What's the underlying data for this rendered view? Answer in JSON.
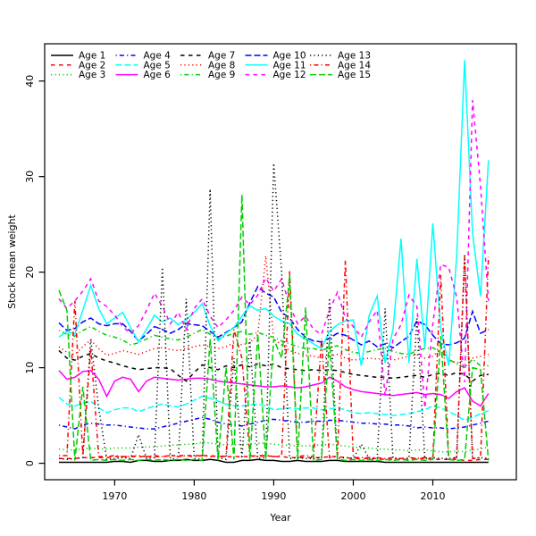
{
  "figure": {
    "background": "#ffffff",
    "xlabel": "Year",
    "ylabel": "Stock mean weight"
  },
  "chart_data": {
    "type": "line",
    "title": "",
    "xlabel": "Year",
    "ylabel": "Stock mean weight",
    "grid": false,
    "legend_position": "top-left-inside",
    "legend_columns": 5,
    "xlim": [
      1961.2,
      2020.5
    ],
    "ylim": [
      -1.72,
      43.9
    ],
    "x_ticks": [
      1970,
      1980,
      1990,
      2000,
      2010
    ],
    "y_ticks": [
      0,
      10,
      20,
      30,
      40
    ],
    "x": [
      1963,
      1964,
      1965,
      1966,
      1967,
      1968,
      1969,
      1970,
      1971,
      1972,
      1973,
      1974,
      1975,
      1976,
      1977,
      1978,
      1979,
      1980,
      1981,
      1982,
      1983,
      1984,
      1985,
      1986,
      1987,
      1988,
      1989,
      1990,
      1991,
      1992,
      1993,
      1994,
      1995,
      1996,
      1997,
      1998,
      1999,
      2000,
      2001,
      2002,
      2003,
      2004,
      2005,
      2006,
      2007,
      2008,
      2009,
      2010,
      2011,
      2012,
      2013,
      2014,
      2015,
      2016,
      2017
    ],
    "series": [
      {
        "name": "Age 1",
        "color": "#000000",
        "dash": "solid",
        "values": [
          0.1,
          0.1,
          0.1,
          0.1,
          0.1,
          0.1,
          0.1,
          0.2,
          0.2,
          0.1,
          0.3,
          0.3,
          0.2,
          0.2,
          0.3,
          0.3,
          0.4,
          0.3,
          0.3,
          0.4,
          0.3,
          0.1,
          0.1,
          0.3,
          0.3,
          0.4,
          0.3,
          0.3,
          0.2,
          0.2,
          0.3,
          0.2,
          0.2,
          0.2,
          0.3,
          0.3,
          0.2,
          0.2,
          0.2,
          0.2,
          0.2,
          0.1,
          0.1,
          0.1,
          0.1,
          0.1,
          0.1,
          0.1,
          0.1,
          0.1,
          0.1,
          0.1,
          0.1,
          0.1,
          0.1
        ]
      },
      {
        "name": "Age 2",
        "color": "#FF0000",
        "dash": "dashed",
        "values": [
          0.5,
          0.5,
          0.5,
          0.6,
          0.6,
          0.6,
          0.6,
          0.7,
          0.7,
          0.7,
          0.7,
          0.7,
          0.7,
          0.7,
          0.8,
          0.8,
          0.8,
          0.8,
          0.8,
          0.8,
          0.7,
          0.7,
          0.7,
          0.7,
          0.7,
          0.8,
          0.8,
          0.7,
          0.7,
          0.6,
          0.6,
          0.6,
          0.6,
          0.6,
          0.7,
          0.7,
          0.6,
          0.5,
          0.5,
          0.5,
          0.5,
          0.4,
          0.4,
          0.4,
          0.4,
          0.5,
          0.5,
          0.4,
          0.4,
          0.4,
          0.4,
          0.3,
          0.3,
          0.4,
          0.4
        ]
      },
      {
        "name": "Age 3",
        "color": "#00CD00",
        "dash": "dotted",
        "values": [
          1.5,
          1.4,
          1.4,
          1.5,
          1.6,
          1.5,
          1.5,
          1.6,
          1.6,
          1.6,
          1.7,
          1.7,
          1.7,
          1.8,
          1.9,
          1.9,
          2.0,
          2.0,
          2.2,
          2.1,
          2.0,
          1.9,
          1.9,
          2.0,
          2.0,
          2.1,
          2.1,
          2.0,
          1.9,
          1.9,
          1.8,
          1.8,
          1.9,
          1.9,
          2.0,
          1.9,
          1.8,
          1.7,
          1.6,
          1.6,
          1.5,
          1.5,
          1.4,
          1.4,
          1.3,
          1.4,
          1.4,
          1.3,
          1.2,
          1.2,
          1.3,
          1.2,
          1.4,
          1.5,
          1.7
        ]
      },
      {
        "name": "Age 4",
        "color": "#0000FF",
        "dash": "dotdash",
        "values": [
          4.0,
          3.8,
          3.6,
          4.0,
          4.2,
          4.1,
          4.0,
          4.0,
          3.9,
          3.8,
          3.7,
          3.6,
          3.6,
          3.8,
          4.0,
          4.2,
          4.4,
          4.6,
          4.8,
          4.6,
          4.3,
          4.1,
          4.0,
          3.9,
          4.1,
          4.3,
          4.5,
          4.6,
          4.5,
          4.4,
          4.3,
          4.3,
          4.4,
          4.4,
          4.5,
          4.5,
          4.4,
          4.3,
          4.2,
          4.2,
          4.1,
          4.1,
          4.0,
          4.0,
          3.9,
          3.7,
          3.8,
          3.7,
          3.7,
          3.6,
          3.7,
          3.8,
          4.0,
          4.2,
          4.4
        ]
      },
      {
        "name": "Age 5",
        "color": "#00FFFF",
        "dash": "longdash",
        "values": [
          6.9,
          6.2,
          6.0,
          6.3,
          6.5,
          5.8,
          5.3,
          5.6,
          5.8,
          5.8,
          5.4,
          5.7,
          6.0,
          6.2,
          6.0,
          5.9,
          6.2,
          6.6,
          7.0,
          6.8,
          6.5,
          6.2,
          6.0,
          6.0,
          6.1,
          6.2,
          6.0,
          5.6,
          5.7,
          5.8,
          5.7,
          5.8,
          5.8,
          5.6,
          5.7,
          5.8,
          5.6,
          5.3,
          5.2,
          5.3,
          5.2,
          5.1,
          5.0,
          5.1,
          5.2,
          5.4,
          5.6,
          6.0,
          5.8,
          5.4,
          5.0,
          4.5,
          4.8,
          5.2,
          5.5
        ]
      },
      {
        "name": "Age 6",
        "color": "#FF00FF",
        "dash": "solid",
        "values": [
          9.7,
          8.8,
          9.0,
          9.6,
          9.7,
          8.8,
          7.0,
          8.6,
          9.0,
          8.8,
          7.5,
          8.6,
          9.0,
          8.9,
          8.8,
          8.7,
          8.8,
          8.9,
          8.9,
          8.8,
          8.6,
          8.5,
          8.4,
          8.3,
          8.2,
          8.1,
          8.0,
          8.0,
          8.1,
          8.0,
          7.9,
          8.0,
          8.2,
          8.4,
          9.0,
          8.6,
          8.0,
          7.7,
          7.5,
          7.4,
          7.3,
          7.2,
          7.1,
          7.2,
          7.3,
          7.4,
          7.2,
          7.3,
          7.2,
          6.8,
          7.5,
          7.9,
          6.5,
          6.0,
          7.3
        ]
      },
      {
        "name": "Age 7",
        "color": "#000000",
        "dash": "dashed",
        "values": [
          11.8,
          11.0,
          10.8,
          11.2,
          11.5,
          11.0,
          10.7,
          10.5,
          10.2,
          10.0,
          9.8,
          9.9,
          10.0,
          10.0,
          9.9,
          9.2,
          8.6,
          9.5,
          10.3,
          10.0,
          9.8,
          10.2,
          10.0,
          10.3,
          10.1,
          10.4,
          10.2,
          10.4,
          10.0,
          9.9,
          9.8,
          9.7,
          9.8,
          9.7,
          9.8,
          9.7,
          9.5,
          9.3,
          9.2,
          9.1,
          9.0,
          9.0,
          8.9,
          9.0,
          9.1,
          9.2,
          9.0,
          9.3,
          9.4,
          9.2,
          9.5,
          9.3,
          8.6,
          9.2,
          9.3
        ]
      },
      {
        "name": "Age 8",
        "color": "#FF0000",
        "dash": "dotted",
        "values": [
          12.2,
          11.6,
          11.4,
          12.2,
          12.9,
          12.0,
          11.3,
          11.5,
          11.8,
          11.6,
          11.4,
          11.7,
          12.0,
          12.1,
          11.9,
          11.8,
          12.0,
          12.2,
          12.4,
          12.2,
          12.0,
          12.2,
          12.6,
          12.4,
          12.6,
          13.5,
          21.7,
          13.0,
          12.4,
          11.8,
          11.5,
          11.3,
          11.2,
          11.0,
          11.2,
          11.4,
          11.0,
          10.8,
          10.9,
          11.0,
          10.9,
          11.0,
          10.8,
          11.0,
          11.2,
          11.4,
          11.0,
          11.2,
          12.0,
          10.8,
          10.5,
          10.8,
          11.0,
          11.2,
          11.4
        ]
      },
      {
        "name": "Age 9",
        "color": "#00CD00",
        "dash": "dotdash",
        "values": [
          13.9,
          13.5,
          13.3,
          13.9,
          14.3,
          13.8,
          13.4,
          13.2,
          12.9,
          12.4,
          12.6,
          13.0,
          13.4,
          13.2,
          13.0,
          12.9,
          13.2,
          13.6,
          14.0,
          13.5,
          13.0,
          13.3,
          13.6,
          13.8,
          13.5,
          13.7,
          13.4,
          13.2,
          12.8,
          12.5,
          12.2,
          12.0,
          12.0,
          11.8,
          12.1,
          12.3,
          11.9,
          11.6,
          11.5,
          11.7,
          11.9,
          12.0,
          11.7,
          11.5,
          11.4,
          11.8,
          12.0,
          12.1,
          11.6,
          10.9,
          10.4,
          10.0,
          10.9,
          10.2,
          10.2
        ]
      },
      {
        "name": "Age 10",
        "color": "#0000FF",
        "dash": "longdash",
        "values": [
          14.7,
          13.9,
          14.1,
          14.8,
          15.2,
          14.6,
          14.4,
          14.6,
          14.6,
          13.8,
          12.8,
          13.5,
          14.3,
          14.0,
          13.6,
          14.0,
          14.6,
          14.5,
          14.4,
          13.8,
          13.2,
          13.7,
          14.2,
          14.8,
          16.8,
          18.5,
          17.8,
          17.4,
          15.8,
          15.2,
          14.0,
          13.2,
          12.8,
          12.7,
          13.1,
          13.6,
          13.4,
          12.9,
          12.4,
          12.8,
          12.2,
          12.5,
          12.1,
          12.7,
          13.3,
          14.9,
          14.5,
          13.4,
          12.5,
          12.4,
          12.6,
          13.1,
          15.9,
          13.6,
          14.0
        ]
      },
      {
        "name": "Age 11",
        "color": "#00FFFF",
        "dash": "solid",
        "values": [
          13.2,
          13.8,
          13.5,
          16.0,
          18.6,
          16.2,
          14.6,
          15.2,
          15.8,
          14.2,
          12.7,
          14.0,
          15.5,
          14.8,
          15.2,
          14.5,
          15.0,
          15.8,
          16.7,
          14.4,
          12.8,
          13.6,
          14.2,
          15.4,
          16.5,
          16.0,
          16.2,
          15.4,
          14.9,
          14.6,
          13.5,
          13.0,
          12.5,
          12.0,
          13.8,
          14.5,
          14.9,
          15.0,
          10.2,
          15.5,
          17.5,
          10.5,
          14.0,
          23.5,
          10.5,
          21.4,
          12.0,
          25.1,
          14.0,
          10.2,
          21.6,
          42.2,
          24.0,
          17.5,
          31.7
        ]
      },
      {
        "name": "Age 12",
        "color": "#FF00FF",
        "dash": "dashed",
        "values": [
          17.2,
          16.2,
          17.0,
          18.0,
          19.3,
          17.0,
          16.4,
          15.5,
          14.3,
          13.6,
          14.4,
          16.0,
          17.8,
          16.4,
          14.6,
          15.8,
          14.0,
          16.2,
          17.2,
          15.4,
          14.2,
          15.0,
          16.0,
          17.4,
          16.6,
          17.6,
          19.4,
          18.0,
          19.3,
          16.5,
          14.6,
          15.4,
          14.0,
          13.5,
          16.0,
          17.9,
          15.2,
          14.3,
          13.2,
          14.8,
          16.0,
          7.1,
          13.0,
          14.5,
          17.6,
          16.4,
          5.8,
          14.6,
          20.8,
          20.5,
          17.4,
          8.5,
          38.0,
          29.0,
          17.0
        ]
      },
      {
        "name": "Age 13",
        "color": "#000000",
        "dash": "dotted",
        "values": [
          0.5,
          0.4,
          0.5,
          0.6,
          13.0,
          5.8,
          0.4,
          0.5,
          0.6,
          0.5,
          3.0,
          0.5,
          0.6,
          20.5,
          0.5,
          0.4,
          17.2,
          0.5,
          0.4,
          28.7,
          0.6,
          0.4,
          11.0,
          0.5,
          13.0,
          0.5,
          0.6,
          31.4,
          20.0,
          0.5,
          0.6,
          0.5,
          0.5,
          0.6,
          17.3,
          0.5,
          0.6,
          0.5,
          2.0,
          0.5,
          0.5,
          16.2,
          0.5,
          0.5,
          0.5,
          15.3,
          0.5,
          0.6,
          0.5,
          0.5,
          0.6,
          21.9,
          0.5,
          0.6,
          0.5
        ]
      },
      {
        "name": "Age 14",
        "color": "#FF0000",
        "dash": "dotdash",
        "values": [
          0.8,
          0.8,
          17.0,
          0.8,
          12.0,
          0.7,
          0.7,
          0.8,
          0.7,
          0.7,
          0.8,
          0.7,
          0.8,
          0.7,
          0.8,
          0.7,
          0.8,
          0.7,
          0.8,
          0.7,
          0.8,
          0.7,
          14.0,
          11.0,
          0.8,
          0.7,
          0.8,
          0.7,
          0.8,
          20.1,
          0.7,
          0.8,
          0.7,
          13.0,
          0.6,
          0.7,
          21.2,
          0.6,
          0.6,
          0.6,
          0.6,
          0.5,
          0.6,
          0.5,
          0.6,
          0.5,
          0.6,
          0.5,
          19.7,
          0.5,
          0.6,
          21.6,
          0.5,
          0.6,
          21.6
        ]
      },
      {
        "name": "Age 15",
        "color": "#00CD00",
        "dash": "longdash",
        "values": [
          18.1,
          16.0,
          0.3,
          8.0,
          0.3,
          0.4,
          0.3,
          0.4,
          0.3,
          0.4,
          0.3,
          0.4,
          0.3,
          0.4,
          0.3,
          0.4,
          0.3,
          0.4,
          0.3,
          13.0,
          0.3,
          10.0,
          0.4,
          28.1,
          0.3,
          13.5,
          0.4,
          13.0,
          11.0,
          19.6,
          0.4,
          16.3,
          0.3,
          0.4,
          13.0,
          0.4,
          0.3,
          0.4,
          0.3,
          0.4,
          0.3,
          0.4,
          0.3,
          0.4,
          0.3,
          0.4,
          0.3,
          0.4,
          13.3,
          0.4,
          0.3,
          0.4,
          10.0,
          9.8,
          0.3
        ]
      }
    ]
  }
}
